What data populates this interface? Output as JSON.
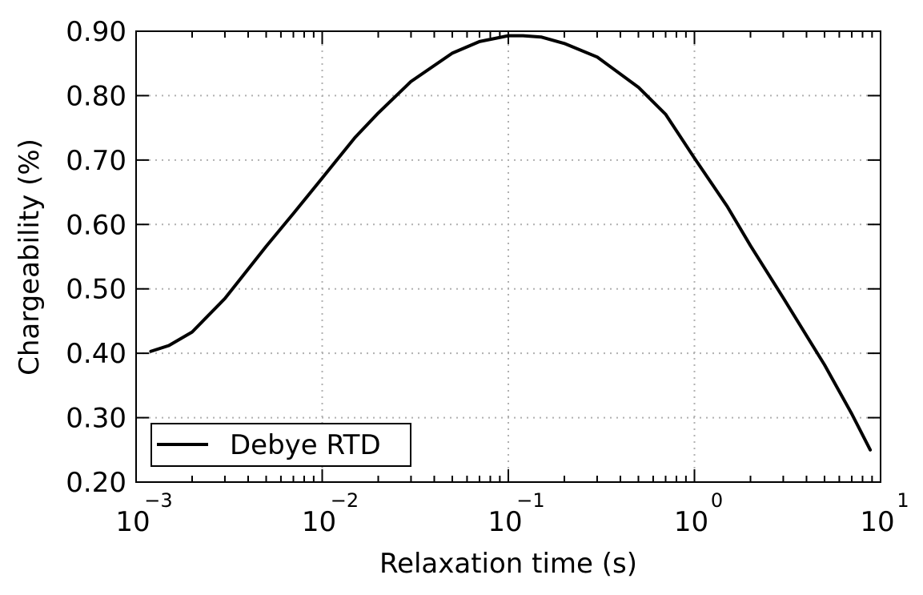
{
  "chart_data": {
    "type": "line",
    "xlabel": "Relaxation time (s)",
    "ylabel": "Chargeability (%)",
    "x_scale": "log",
    "xlim": [
      0.001,
      10
    ],
    "ylim": [
      0.2,
      0.9
    ],
    "grid": true,
    "legend_position": "bottom-left",
    "x_tick_labels": [
      {
        "value": 0.001,
        "base": "10",
        "exp": "−3"
      },
      {
        "value": 0.01,
        "base": "10",
        "exp": "−2"
      },
      {
        "value": 0.1,
        "base": "10",
        "exp": "−1"
      },
      {
        "value": 1,
        "base": "10",
        "exp": "0"
      },
      {
        "value": 10,
        "base": "10",
        "exp": "1"
      }
    ],
    "y_ticks": [
      0.2,
      0.3,
      0.4,
      0.5,
      0.6,
      0.7,
      0.8,
      0.9
    ],
    "y_tick_labels": [
      "0.20",
      "0.30",
      "0.40",
      "0.50",
      "0.60",
      "0.70",
      "0.80",
      "0.90"
    ],
    "series": [
      {
        "name": "Debye RTD",
        "color": "#000000",
        "x": [
          0.0012,
          0.0015,
          0.002,
          0.003,
          0.005,
          0.007,
          0.01,
          0.015,
          0.02,
          0.03,
          0.05,
          0.07,
          0.1,
          0.12,
          0.15,
          0.2,
          0.3,
          0.5,
          0.7,
          1.0,
          1.5,
          2.0,
          3.0,
          5.0,
          7.0,
          8.8
        ],
        "y": [
          0.403,
          0.412,
          0.433,
          0.485,
          0.566,
          0.617,
          0.672,
          0.735,
          0.773,
          0.822,
          0.866,
          0.884,
          0.893,
          0.893,
          0.891,
          0.881,
          0.86,
          0.813,
          0.771,
          0.703,
          0.628,
          0.567,
          0.486,
          0.382,
          0.306,
          0.25
        ]
      }
    ]
  }
}
